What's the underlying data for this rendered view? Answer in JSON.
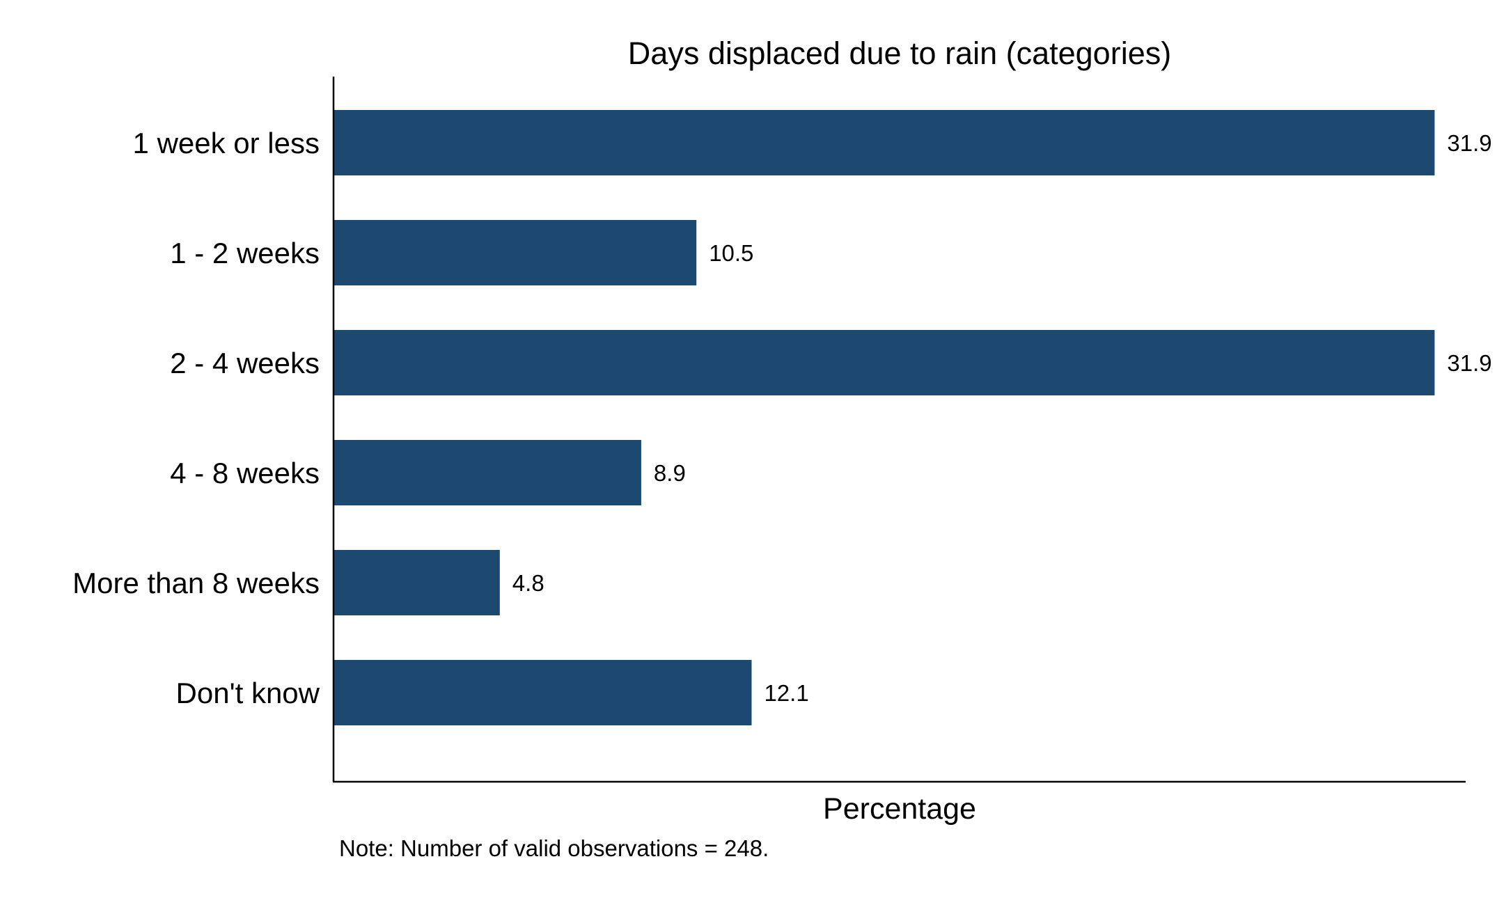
{
  "chart_data": {
    "type": "bar",
    "orientation": "horizontal",
    "title": "Days displaced due to rain (categories)",
    "xlabel": "Percentage",
    "ylabel": "",
    "categories": [
      "1 week or less",
      "1 - 2 weeks",
      "2 - 4 weeks",
      "4 - 8 weeks",
      "More than 8 weeks",
      "Don't know"
    ],
    "values": [
      31.9,
      10.5,
      31.9,
      8.9,
      4.8,
      12.1
    ],
    "value_labels": [
      "31.9",
      "10.5",
      "31.9",
      "8.9",
      "4.8",
      "12.1"
    ],
    "xlim": [
      0,
      32.8
    ],
    "grid": false,
    "legend": "none",
    "bar_color": "#1d4971",
    "note": "Note: Number of valid observations = 248."
  }
}
